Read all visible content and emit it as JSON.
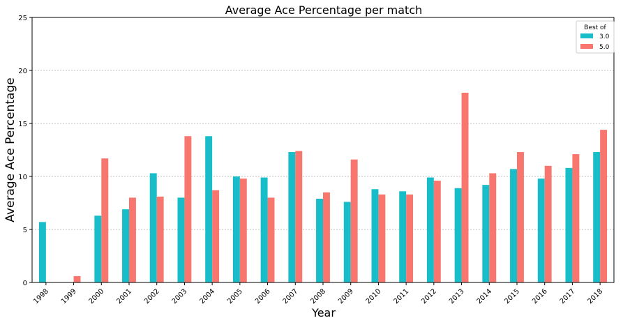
{
  "chart_data": {
    "type": "bar",
    "title": "Average Ace Percentage per match",
    "xlabel": "Year",
    "ylabel": "Average Ace Percentage",
    "ylim": [
      0,
      25
    ],
    "yticks": [
      0,
      5,
      10,
      15,
      20,
      25
    ],
    "grid": "y",
    "legend": {
      "title": "Best of",
      "placement": "top-right"
    },
    "categories": [
      "1998",
      "1999",
      "2000",
      "2001",
      "2002",
      "2003",
      "2004",
      "2005",
      "2006",
      "2007",
      "2008",
      "2009",
      "2010",
      "2011",
      "2012",
      "2013",
      "2014",
      "2015",
      "2016",
      "2017",
      "2018"
    ],
    "series": [
      {
        "name": "3.0",
        "color": "#17bec9",
        "values": [
          5.7,
          null,
          6.3,
          6.9,
          10.3,
          8.0,
          13.8,
          10.0,
          9.9,
          12.3,
          7.9,
          7.6,
          8.8,
          8.6,
          9.9,
          8.9,
          9.2,
          10.7,
          9.8,
          10.8,
          12.3
        ]
      },
      {
        "name": "5.0",
        "color": "#f8766d",
        "values": [
          null,
          0.6,
          11.7,
          8.0,
          8.1,
          13.8,
          8.7,
          9.8,
          8.0,
          12.4,
          8.5,
          11.6,
          8.3,
          8.3,
          9.6,
          17.9,
          10.3,
          12.3,
          11.0,
          12.1,
          14.4
        ]
      }
    ]
  }
}
